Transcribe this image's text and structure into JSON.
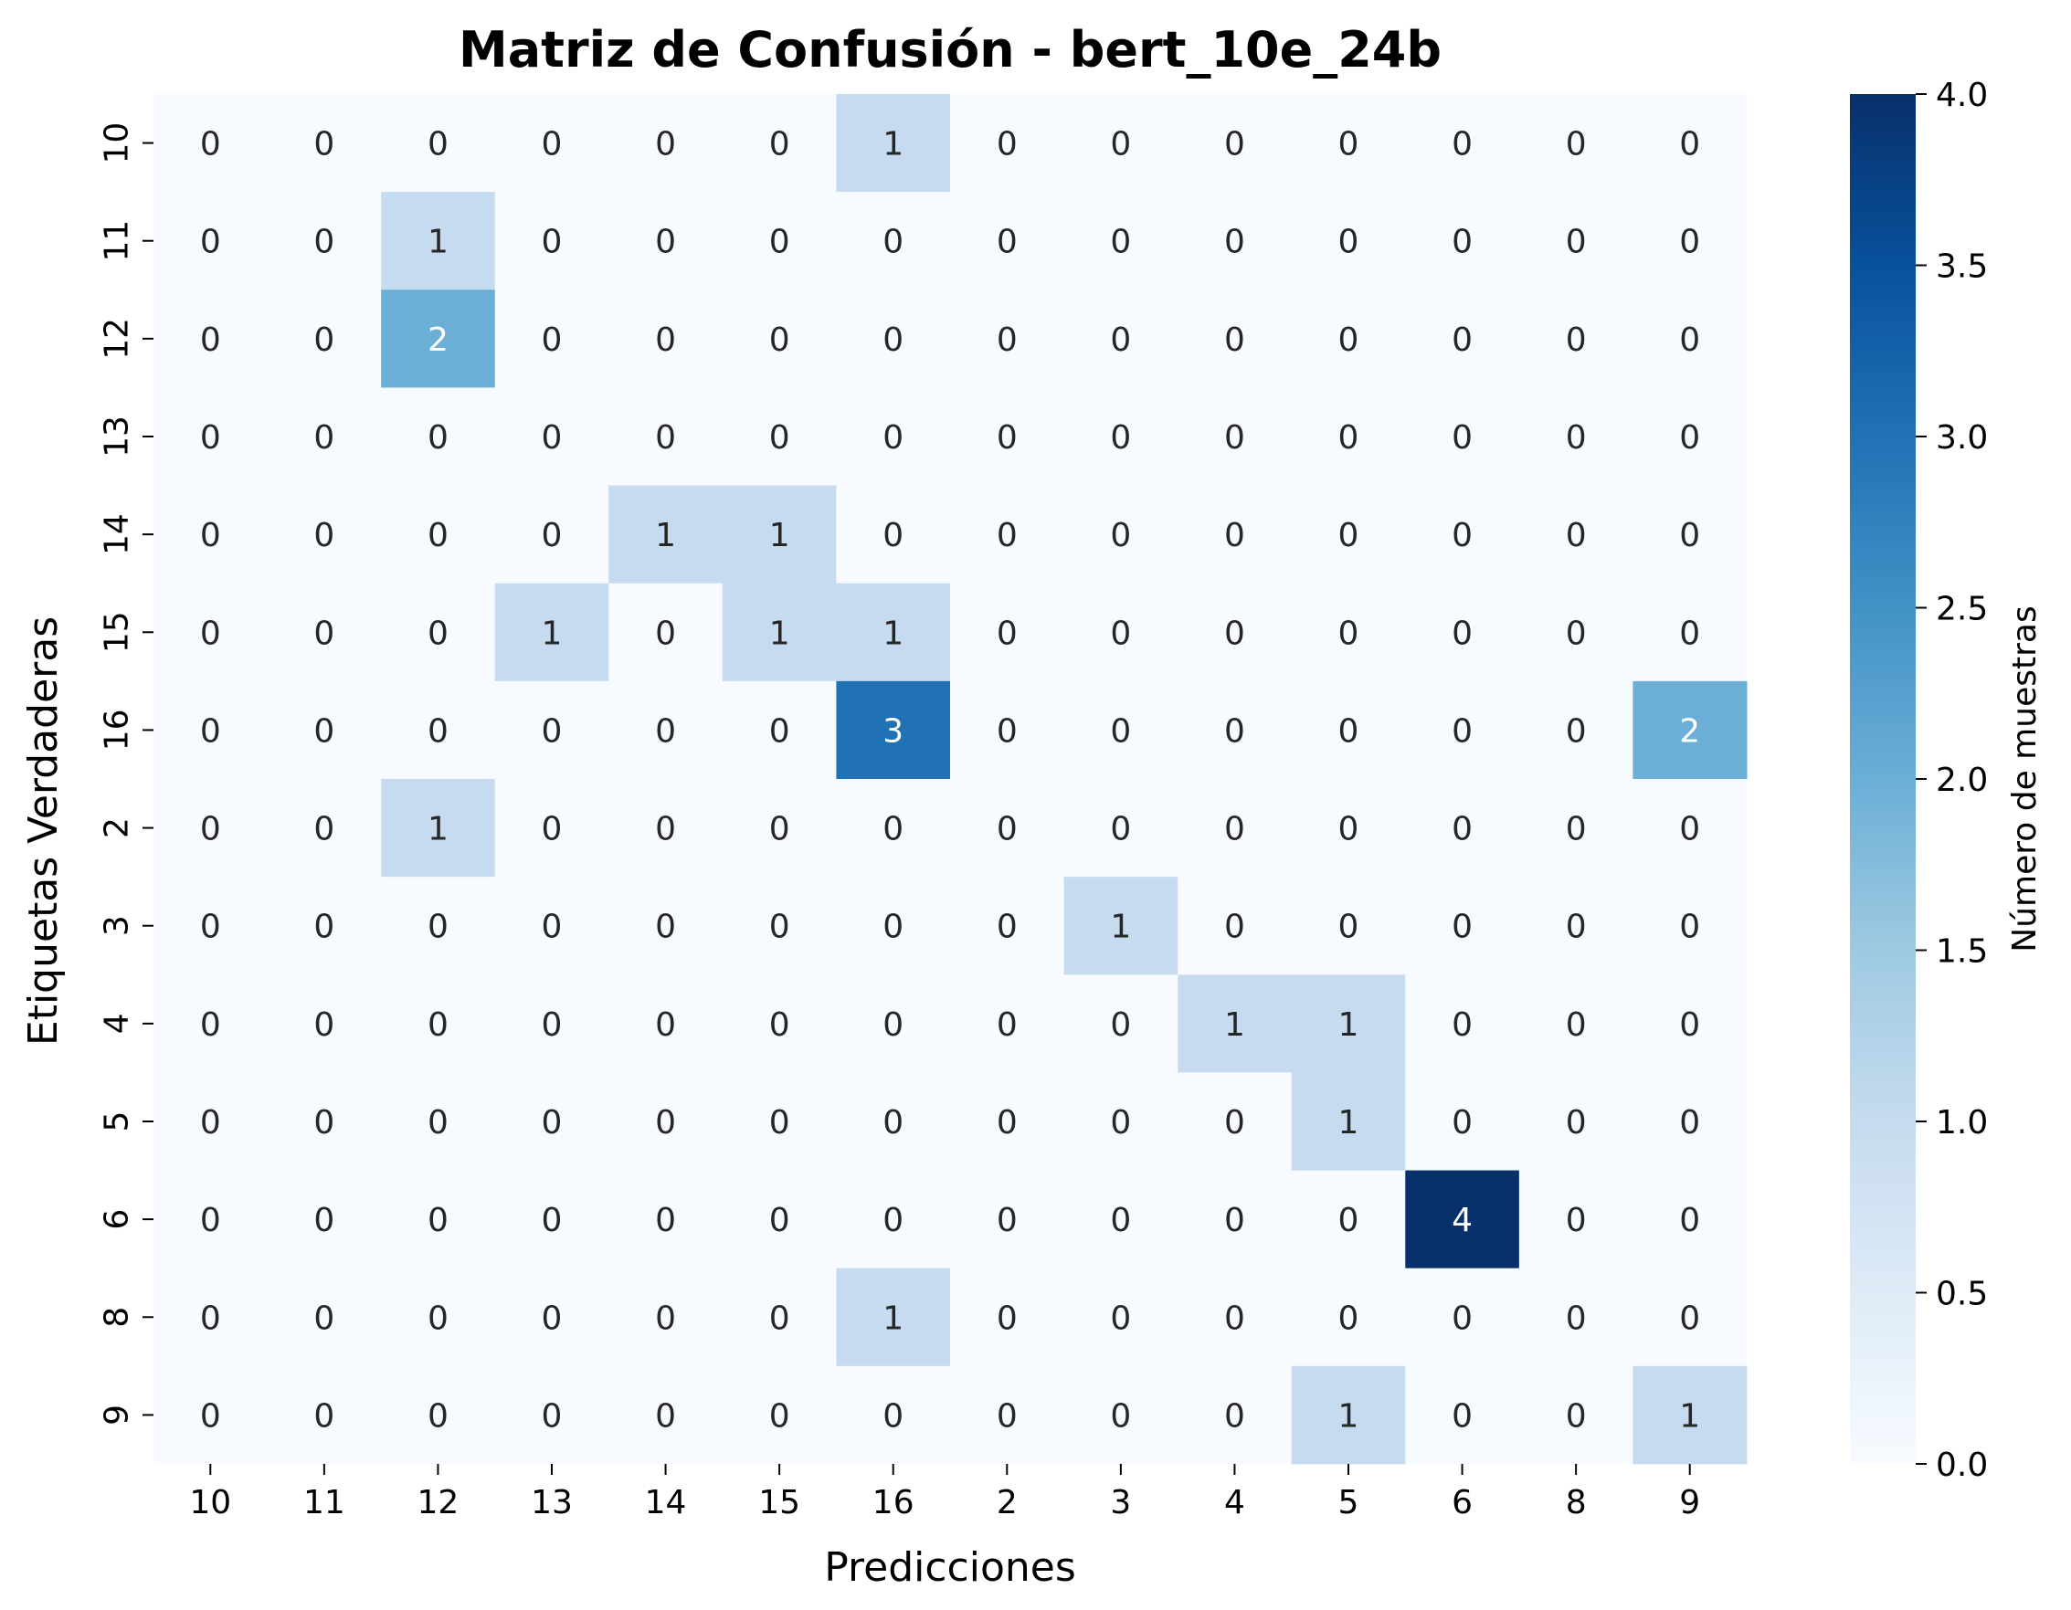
{
  "chart_data": {
    "type": "heatmap",
    "title": "Matriz de Confusión - bert_10e_24b",
    "xlabel": "Predicciones",
    "ylabel": "Etiquetas Verdaderas",
    "x_categories": [
      "10",
      "11",
      "12",
      "13",
      "14",
      "15",
      "16",
      "2",
      "3",
      "4",
      "5",
      "6",
      "8",
      "9"
    ],
    "y_categories": [
      "10",
      "11",
      "12",
      "13",
      "14",
      "15",
      "16",
      "2",
      "3",
      "4",
      "5",
      "6",
      "8",
      "9"
    ],
    "values": [
      [
        0,
        0,
        0,
        0,
        0,
        0,
        1,
        0,
        0,
        0,
        0,
        0,
        0,
        0
      ],
      [
        0,
        0,
        1,
        0,
        0,
        0,
        0,
        0,
        0,
        0,
        0,
        0,
        0,
        0
      ],
      [
        0,
        0,
        2,
        0,
        0,
        0,
        0,
        0,
        0,
        0,
        0,
        0,
        0,
        0
      ],
      [
        0,
        0,
        0,
        0,
        0,
        0,
        0,
        0,
        0,
        0,
        0,
        0,
        0,
        0
      ],
      [
        0,
        0,
        0,
        0,
        1,
        1,
        0,
        0,
        0,
        0,
        0,
        0,
        0,
        0
      ],
      [
        0,
        0,
        0,
        1,
        0,
        1,
        1,
        0,
        0,
        0,
        0,
        0,
        0,
        0
      ],
      [
        0,
        0,
        0,
        0,
        0,
        0,
        3,
        0,
        0,
        0,
        0,
        0,
        0,
        2
      ],
      [
        0,
        0,
        1,
        0,
        0,
        0,
        0,
        0,
        0,
        0,
        0,
        0,
        0,
        0
      ],
      [
        0,
        0,
        0,
        0,
        0,
        0,
        0,
        0,
        1,
        0,
        0,
        0,
        0,
        0
      ],
      [
        0,
        0,
        0,
        0,
        0,
        0,
        0,
        0,
        0,
        1,
        1,
        0,
        0,
        0
      ],
      [
        0,
        0,
        0,
        0,
        0,
        0,
        0,
        0,
        0,
        0,
        1,
        0,
        0,
        0
      ],
      [
        0,
        0,
        0,
        0,
        0,
        0,
        0,
        0,
        0,
        0,
        0,
        4,
        0,
        0
      ],
      [
        0,
        0,
        0,
        0,
        0,
        0,
        1,
        0,
        0,
        0,
        0,
        0,
        0,
        0
      ],
      [
        0,
        0,
        0,
        0,
        0,
        0,
        0,
        0,
        0,
        0,
        1,
        0,
        0,
        1
      ]
    ],
    "colorbar": {
      "label": "Número de muestras",
      "range": [
        0,
        4
      ],
      "ticks": [
        "0.0",
        "0.5",
        "1.0",
        "1.5",
        "2.0",
        "2.5",
        "3.0",
        "3.5",
        "4.0"
      ],
      "colormap": "Blues"
    },
    "colors": {
      "cell_0": "#f7fbff",
      "cell_1": "#c6dbef",
      "cell_2": "#6baed6",
      "cell_3": "#2171b5",
      "cell_4": "#08306b",
      "text_dark": "#262626",
      "text_light": "#ffffff",
      "axis": "#000000"
    }
  }
}
